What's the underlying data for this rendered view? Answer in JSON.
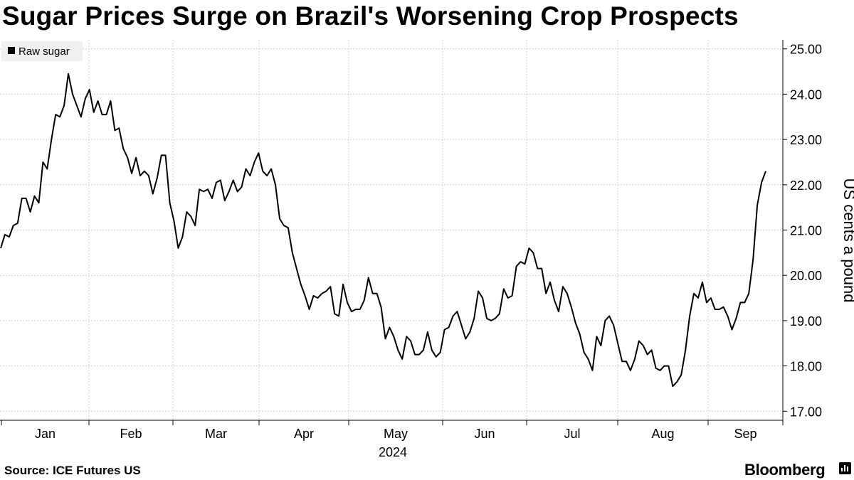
{
  "title": "Sugar Prices Surge on Brazil's Worsening Crop Prospects",
  "source": "Source: ICE Futures US",
  "brand": "Bloomberg",
  "chart_data": {
    "type": "line",
    "title": "Sugar Prices Surge on Brazil's Worsening Crop Prospects",
    "ylabel": "US cents a pound",
    "xlabel": "",
    "year_label": "2024",
    "ylim": [
      16.8,
      25.2
    ],
    "y_ticks": [
      "17.00",
      "18.00",
      "19.00",
      "20.00",
      "21.00",
      "22.00",
      "23.00",
      "24.00",
      "25.00"
    ],
    "x_tick_labels": [
      "Jan",
      "Feb",
      "Mar",
      "Apr",
      "May",
      "Jun",
      "Jul",
      "Aug",
      "Sep"
    ],
    "grid": true,
    "legend": "top-left",
    "colors": {
      "line": "#000000",
      "grid": "#d0d0d0",
      "legend_bg": "#f0f0f0"
    },
    "series": [
      {
        "name": "Raw sugar",
        "values": [
          20.6,
          20.9,
          20.85,
          21.1,
          21.15,
          21.7,
          21.7,
          21.4,
          21.75,
          21.6,
          22.5,
          22.35,
          23.0,
          23.55,
          23.5,
          23.75,
          24.45,
          24.0,
          23.75,
          23.5,
          23.9,
          24.1,
          23.6,
          23.85,
          23.55,
          23.55,
          23.85,
          23.2,
          23.25,
          22.8,
          22.6,
          22.25,
          22.6,
          22.2,
          22.3,
          22.2,
          21.8,
          22.15,
          22.65,
          22.65,
          21.6,
          21.2,
          20.6,
          20.85,
          21.4,
          21.3,
          21.1,
          21.9,
          21.85,
          21.9,
          21.7,
          22.05,
          22.1,
          21.65,
          21.85,
          22.1,
          21.85,
          21.95,
          22.35,
          22.2,
          22.5,
          22.7,
          22.3,
          22.2,
          22.35,
          22.0,
          21.25,
          21.1,
          21.05,
          20.5,
          20.15,
          19.8,
          19.55,
          19.25,
          19.55,
          19.5,
          19.6,
          19.65,
          19.75,
          19.15,
          19.1,
          19.8,
          19.4,
          19.2,
          19.25,
          19.25,
          19.45,
          19.95,
          19.6,
          19.6,
          19.3,
          18.6,
          18.85,
          18.65,
          18.35,
          18.15,
          18.65,
          18.55,
          18.25,
          18.25,
          18.35,
          18.75,
          18.35,
          18.2,
          18.3,
          18.8,
          18.85,
          19.1,
          19.2,
          18.9,
          18.6,
          18.75,
          19.05,
          19.65,
          19.5,
          19.05,
          19.0,
          19.05,
          19.15,
          19.7,
          19.5,
          19.55,
          20.2,
          20.3,
          20.25,
          20.6,
          20.5,
          20.15,
          20.15,
          19.6,
          19.85,
          19.45,
          19.2,
          19.75,
          19.6,
          19.3,
          18.95,
          18.7,
          18.3,
          18.15,
          17.9,
          18.65,
          18.45,
          19.0,
          19.1,
          18.9,
          18.5,
          18.1,
          18.1,
          17.9,
          18.15,
          18.55,
          18.45,
          18.25,
          18.35,
          17.95,
          17.9,
          18.0,
          18.0,
          17.55,
          17.65,
          17.8,
          18.35,
          19.1,
          19.6,
          19.5,
          19.85,
          19.4,
          19.5,
          19.25,
          19.25,
          19.3,
          19.1,
          18.8,
          19.05,
          19.4,
          19.4,
          19.6,
          20.35,
          21.55,
          22.05,
          22.3
        ]
      }
    ]
  }
}
